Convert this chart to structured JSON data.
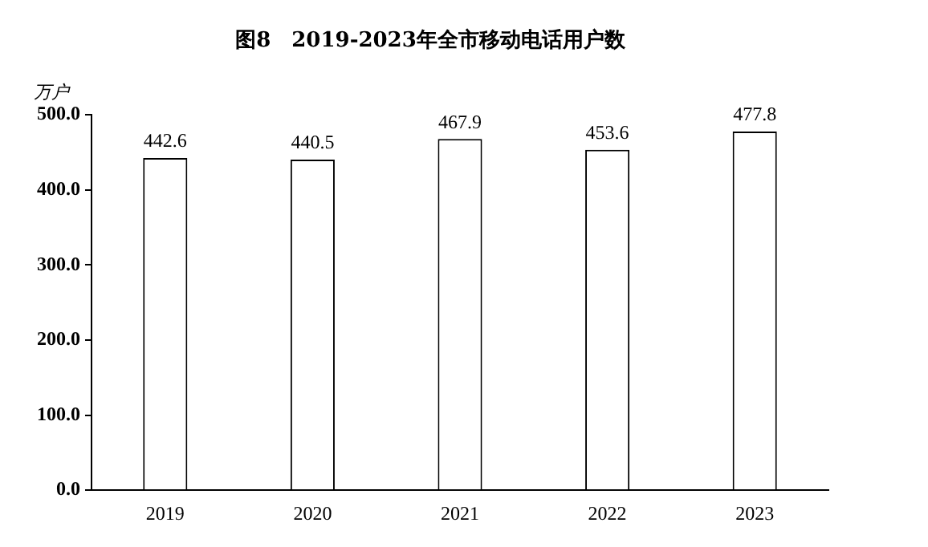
{
  "chart_data": {
    "type": "bar",
    "title": "图8　2019-2023年全市移动电话用户数",
    "ylabel": "万户",
    "categories": [
      "2019",
      "2020",
      "2021",
      "2022",
      "2023"
    ],
    "values": [
      442.6,
      440.5,
      467.9,
      453.6,
      477.8
    ],
    "color": "#ffffff",
    "ylim": [
      0,
      500
    ],
    "yticks": [
      {
        "value": 0,
        "label": "0.0"
      },
      {
        "value": 100,
        "label": "100.0"
      },
      {
        "value": 200,
        "label": "200.0"
      },
      {
        "value": 300,
        "label": "300.0"
      },
      {
        "value": 400,
        "label": "400.0"
      },
      {
        "value": 500,
        "label": "500.0"
      }
    ],
    "grid": false,
    "legend": false,
    "data_labels": true
  }
}
